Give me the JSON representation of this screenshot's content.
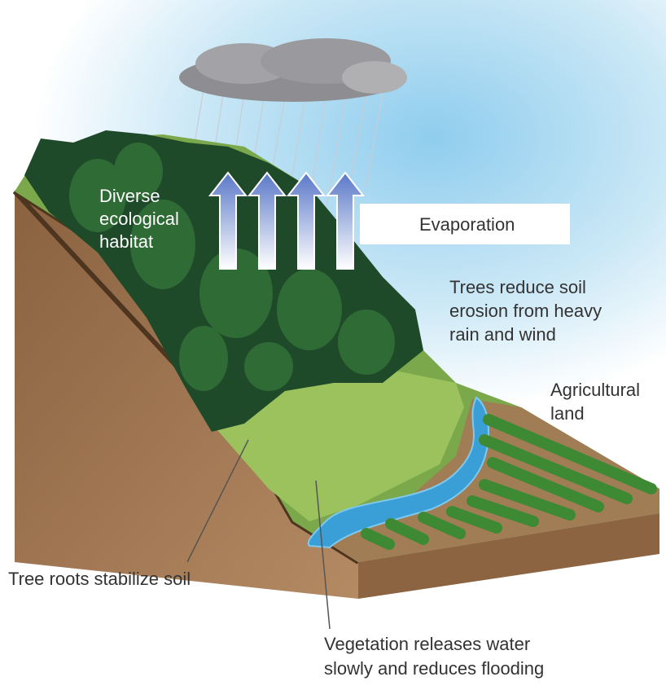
{
  "labels": [
    {
      "lines": [
        "Diverse",
        "ecological",
        "habitat"
      ]
    },
    {
      "lines": [
        "Evaporation"
      ]
    },
    {
      "lines": [
        "Trees reduce soil",
        "erosion from heavy",
        "rain and wind"
      ]
    },
    {
      "lines": [
        "Agricultural",
        "land"
      ]
    },
    {
      "lines": [
        "Tree roots stabilize soil"
      ]
    },
    {
      "lines": [
        "Vegetation releases water",
        "slowly and reduces flooding"
      ]
    }
  ]
}
